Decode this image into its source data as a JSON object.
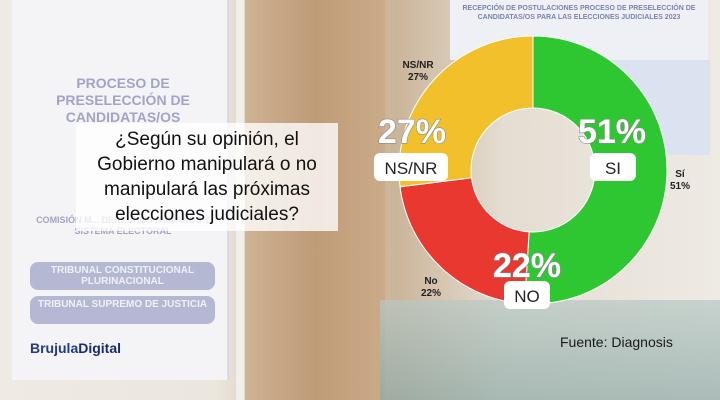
{
  "question": "¿Según su opinión, el Gobierno manipulará o no manipulará las próximas elecciones judiciales?",
  "brand": {
    "part1": "Brujula",
    "part2": "Digital"
  },
  "source": "Fuente: Diagnosis",
  "background_text": {
    "left_banner_title": "PROCESO DE PRESELECCIÓN DE CANDIDATAS/OS",
    "left_banner_commission": "COMISIÓN M... DERECHOS HUMANOS Y SISTEMA ELECTORAL",
    "left_pill_1": "TRIBUNAL CONSTITUCIONAL PLURINACIONAL",
    "left_pill_2": "TRIBUNAL SUPREMO DE JUSTICIA",
    "right_poster": "RECEPCIÓN DE POSTULACIONES PROCESO DE PRESELECCIÓN DE CANDIDATAS/OS PARA LAS ELECCIONES JUDICIALES 2023"
  },
  "chart_data": {
    "type": "pie",
    "donut": true,
    "categories": [
      "SI",
      "NO",
      "NS/NR"
    ],
    "values": [
      51,
      22,
      27
    ],
    "colors": [
      "#2ec732",
      "#e9382f",
      "#f1c02b"
    ],
    "value_labels": [
      "51%",
      "22%",
      "27%"
    ],
    "outer_labels": [
      "Sí\n51%",
      "No\n22%",
      "NS/NR\n27%"
    ],
    "start": "top, clockwise"
  }
}
